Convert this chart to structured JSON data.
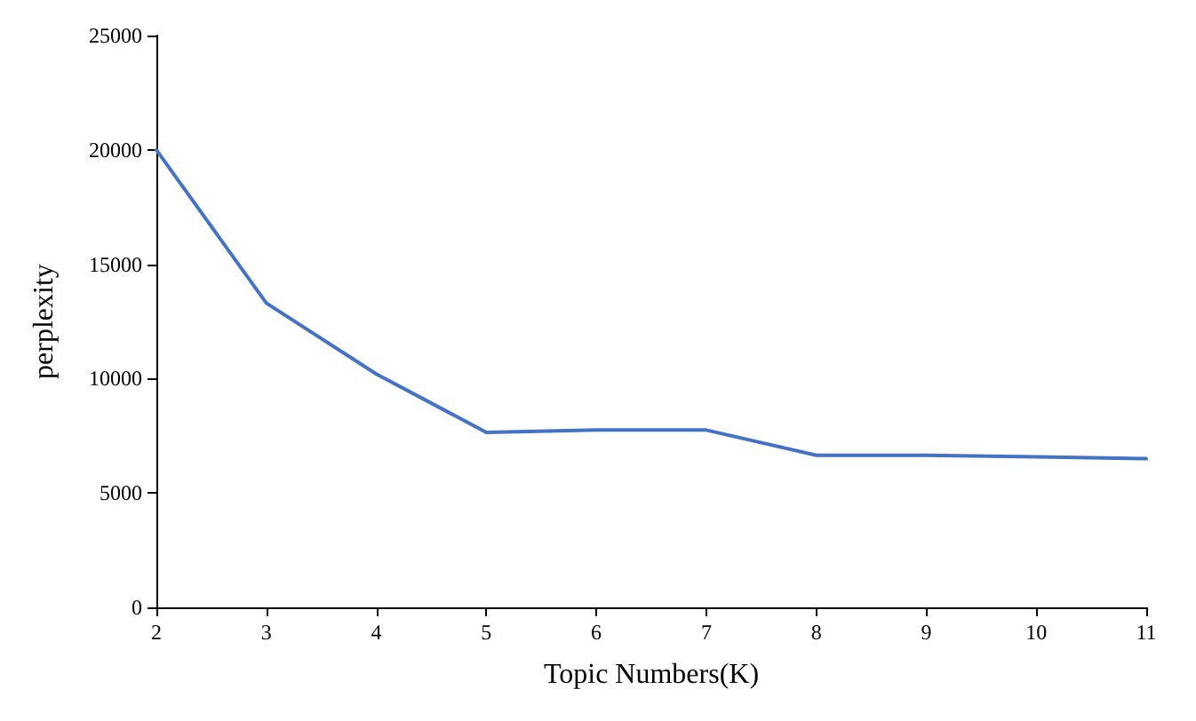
{
  "chart_data": {
    "type": "line",
    "xlabel": "Topic Numbers(K)",
    "ylabel": "perplexity",
    "x": [
      2,
      3,
      4,
      5,
      6,
      7,
      8,
      9,
      10,
      11
    ],
    "series": [
      {
        "color": "#4472c4",
        "values": [
          20000,
          13300,
          10200,
          7650,
          7750,
          7750,
          6650,
          6650,
          6580,
          6500
        ]
      }
    ],
    "xlim": [
      2,
      11
    ],
    "xticks": [
      2,
      3,
      4,
      5,
      6,
      7,
      8,
      9,
      10,
      11
    ],
    "ylim": [
      0,
      25000
    ],
    "yticks": [
      0,
      5000,
      10000,
      15000,
      20000,
      25000
    ],
    "grid": false,
    "marker": "none",
    "line_style": "solid"
  }
}
